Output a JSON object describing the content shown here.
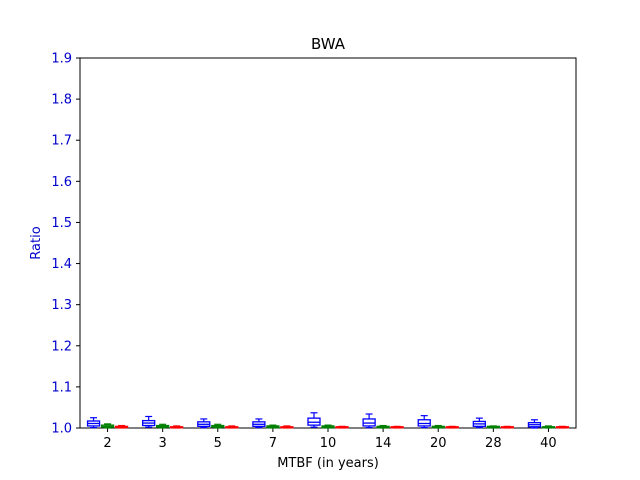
{
  "chart_data": {
    "type": "box",
    "title": "BWA",
    "xlabel": "MTBF (in years)",
    "ylabel": "Ratio",
    "categories": [
      "2",
      "3",
      "5",
      "7",
      "10",
      "14",
      "20",
      "28",
      "40"
    ],
    "ylim": [
      1.0,
      1.9
    ],
    "yticks": [
      "1.0",
      "1.1",
      "1.2",
      "1.3",
      "1.4",
      "1.5",
      "1.6",
      "1.7",
      "1.8",
      "1.9"
    ],
    "grid": false,
    "colors": {
      "axis_text": "#0000cc",
      "text": "#000000"
    },
    "series": [
      {
        "color": "#0000ff",
        "boxes": [
          {
            "whislo": 1.001,
            "q1": 1.005,
            "med": 1.011,
            "q3": 1.017,
            "whishi": 1.025
          },
          {
            "whislo": 1.002,
            "q1": 1.006,
            "med": 1.012,
            "q3": 1.018,
            "whishi": 1.028
          },
          {
            "whislo": 1.001,
            "q1": 1.004,
            "med": 1.009,
            "q3": 1.015,
            "whishi": 1.022
          },
          {
            "whislo": 1.001,
            "q1": 1.004,
            "med": 1.009,
            "q3": 1.015,
            "whishi": 1.022
          },
          {
            "whislo": 1.002,
            "q1": 1.007,
            "med": 1.014,
            "q3": 1.024,
            "whishi": 1.037
          },
          {
            "whislo": 1.001,
            "q1": 1.005,
            "med": 1.012,
            "q3": 1.022,
            "whishi": 1.034
          },
          {
            "whislo": 1.001,
            "q1": 1.005,
            "med": 1.011,
            "q3": 1.02,
            "whishi": 1.03
          },
          {
            "whislo": 1.001,
            "q1": 1.004,
            "med": 1.01,
            "q3": 1.016,
            "whishi": 1.024
          },
          {
            "whislo": 1.0,
            "q1": 1.003,
            "med": 1.008,
            "q3": 1.013,
            "whishi": 1.02
          }
        ]
      },
      {
        "color": "#008000",
        "boxes": [
          {
            "whislo": 1.0,
            "q1": 1.002,
            "med": 1.004,
            "q3": 1.007,
            "whishi": 1.01
          },
          {
            "whislo": 1.0,
            "q1": 1.002,
            "med": 1.004,
            "q3": 1.006,
            "whishi": 1.009
          },
          {
            "whislo": 1.0,
            "q1": 1.002,
            "med": 1.004,
            "q3": 1.006,
            "whishi": 1.009
          },
          {
            "whislo": 1.0,
            "q1": 1.001,
            "med": 1.003,
            "q3": 1.005,
            "whishi": 1.007
          },
          {
            "whislo": 1.0,
            "q1": 1.001,
            "med": 1.003,
            "q3": 1.005,
            "whishi": 1.007
          },
          {
            "whislo": 1.0,
            "q1": 1.001,
            "med": 1.003,
            "q3": 1.004,
            "whishi": 1.006
          },
          {
            "whislo": 1.0,
            "q1": 1.001,
            "med": 1.003,
            "q3": 1.004,
            "whishi": 1.006
          },
          {
            "whislo": 1.0,
            "q1": 1.001,
            "med": 1.002,
            "q3": 1.004,
            "whishi": 1.005
          },
          {
            "whislo": 1.0,
            "q1": 1.001,
            "med": 1.002,
            "q3": 1.003,
            "whishi": 1.005
          }
        ]
      },
      {
        "color": "#ff0000",
        "boxes": [
          {
            "whislo": 1.0,
            "q1": 1.001,
            "med": 1.002,
            "q3": 1.004,
            "whishi": 1.006
          },
          {
            "whislo": 1.0,
            "q1": 1.001,
            "med": 1.002,
            "q3": 1.003,
            "whishi": 1.005
          },
          {
            "whislo": 1.0,
            "q1": 1.001,
            "med": 1.002,
            "q3": 1.003,
            "whishi": 1.005
          },
          {
            "whislo": 1.0,
            "q1": 1.001,
            "med": 1.002,
            "q3": 1.003,
            "whishi": 1.005
          },
          {
            "whislo": 1.0,
            "q1": 1.001,
            "med": 1.002,
            "q3": 1.003,
            "whishi": 1.004
          },
          {
            "whislo": 1.0,
            "q1": 1.001,
            "med": 1.002,
            "q3": 1.003,
            "whishi": 1.004
          },
          {
            "whislo": 1.0,
            "q1": 1.001,
            "med": 1.002,
            "q3": 1.003,
            "whishi": 1.004
          },
          {
            "whislo": 1.0,
            "q1": 1.001,
            "med": 1.002,
            "q3": 1.003,
            "whishi": 1.004
          },
          {
            "whislo": 1.0,
            "q1": 1.001,
            "med": 1.002,
            "q3": 1.003,
            "whishi": 1.004
          }
        ]
      }
    ]
  }
}
